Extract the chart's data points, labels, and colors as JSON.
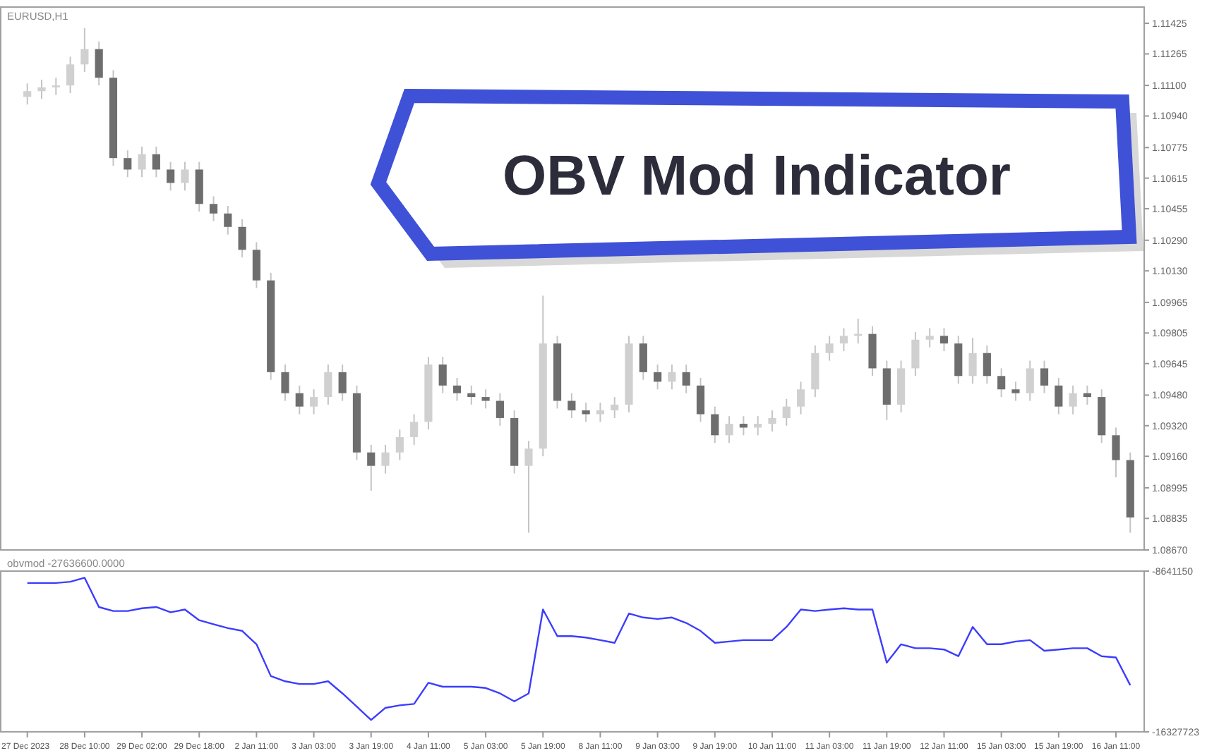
{
  "chart_data": [
    {
      "type": "candlestick",
      "title": "OBV Mod Indicator",
      "annotations": [
        "EURUSD,H1"
      ],
      "tick_labels": "y",
      "grid": false,
      "ylim": [
        1.0867,
        1.1151
      ],
      "yticks": [
        {
          "value": 1.0867,
          "label": "1.08670"
        },
        1.08835,
        1.08995,
        {
          "value": 1.0916,
          "label": "1.09160"
        },
        {
          "value": 1.0932,
          "label": "1.09320"
        },
        {
          "value": 1.0948,
          "label": "1.09480"
        },
        1.09645,
        1.09805,
        1.09965,
        {
          "value": 1.1013,
          "label": "1.10130"
        },
        {
          "value": 1.1029,
          "label": "1.10290"
        },
        1.10455,
        1.10615,
        1.10775,
        {
          "value": 1.1094,
          "label": "1.10940"
        },
        {
          "value": 1.111,
          "label": "1.11100"
        },
        1.11265,
        1.11425
      ],
      "ohlc": [
        [
          1.1104,
          1.1111,
          1.11,
          1.1107
        ],
        [
          1.1107,
          1.1113,
          1.1103,
          1.1109
        ],
        [
          1.1109,
          1.1114,
          1.1105,
          1.111
        ],
        [
          1.111,
          1.1125,
          1.1106,
          1.1121
        ],
        [
          1.1121,
          1.114,
          1.1117,
          1.1129
        ],
        [
          1.1129,
          1.1133,
          1.111,
          1.1114
        ],
        [
          1.1114,
          1.1118,
          1.1068,
          1.1072
        ],
        [
          1.1072,
          1.1076,
          1.1062,
          1.1066
        ],
        [
          1.1066,
          1.1078,
          1.1062,
          1.1074
        ],
        [
          1.1074,
          1.1078,
          1.1062,
          1.1066
        ],
        [
          1.1066,
          1.107,
          1.1055,
          1.1059
        ],
        [
          1.1059,
          1.107,
          1.1055,
          1.1066
        ],
        [
          1.1066,
          1.107,
          1.1044,
          1.1048
        ],
        [
          1.1048,
          1.1052,
          1.1039,
          1.1043
        ],
        [
          1.1043,
          1.1047,
          1.1032,
          1.1036
        ],
        [
          1.1036,
          1.104,
          1.102,
          1.1024
        ],
        [
          1.1024,
          1.1028,
          1.1004,
          1.1008
        ],
        [
          1.1008,
          1.1012,
          1.0956,
          1.096
        ],
        [
          1.096,
          1.0964,
          1.0945,
          1.0949
        ],
        [
          1.0949,
          1.0953,
          1.0938,
          1.0942
        ],
        [
          1.0942,
          1.0951,
          1.0938,
          1.0947
        ],
        [
          1.0947,
          1.0964,
          1.0943,
          1.096
        ],
        [
          1.096,
          1.0964,
          1.0945,
          1.0949
        ],
        [
          1.0949,
          1.0953,
          1.0914,
          1.0918
        ],
        [
          1.0918,
          1.0922,
          1.0898,
          1.0911
        ],
        [
          1.0911,
          1.0922,
          1.0907,
          1.0918
        ],
        [
          1.0918,
          1.093,
          1.0914,
          1.0926
        ],
        [
          1.0926,
          1.0938,
          1.0922,
          1.0934
        ],
        [
          1.0934,
          1.0968,
          1.093,
          1.0964
        ],
        [
          1.0964,
          1.0968,
          1.0949,
          1.0953
        ],
        [
          1.0953,
          1.0957,
          1.0945,
          1.0949
        ],
        [
          1.0949,
          1.0953,
          1.0943,
          1.0947
        ],
        [
          1.0947,
          1.0951,
          1.0941,
          1.0945
        ],
        [
          1.0945,
          1.0949,
          1.0932,
          1.0936
        ],
        [
          1.0936,
          1.094,
          1.0907,
          1.0911
        ],
        [
          1.0911,
          1.0924,
          1.0876,
          1.092
        ],
        [
          1.092,
          1.1,
          1.0916,
          1.0975
        ],
        [
          1.0975,
          1.0979,
          1.0941,
          1.0945
        ],
        [
          1.0945,
          1.0949,
          1.0936,
          1.094
        ],
        [
          1.094,
          1.0944,
          1.0934,
          1.0938
        ],
        [
          1.0938,
          1.0944,
          1.0934,
          1.094
        ],
        [
          1.094,
          1.0947,
          1.0936,
          1.0943
        ],
        [
          1.0943,
          1.0979,
          1.0939,
          1.0975
        ],
        [
          1.0975,
          1.0979,
          1.0956,
          1.096
        ],
        [
          1.096,
          1.0964,
          1.0951,
          1.0955
        ],
        [
          1.0955,
          1.0964,
          1.0951,
          1.096
        ],
        [
          1.096,
          1.0964,
          1.0949,
          1.0953
        ],
        [
          1.0953,
          1.0957,
          1.0934,
          1.0938
        ],
        [
          1.0938,
          1.0942,
          1.0923,
          1.0927
        ],
        [
          1.0927,
          1.0937,
          1.0923,
          1.0933
        ],
        [
          1.0933,
          1.0937,
          1.0927,
          1.0931
        ],
        [
          1.0931,
          1.0937,
          1.0927,
          1.0933
        ],
        [
          1.0933,
          1.094,
          1.0929,
          1.0936
        ],
        [
          1.0936,
          1.0946,
          1.0932,
          1.0942
        ],
        [
          1.0942,
          1.0955,
          1.0938,
          1.0951
        ],
        [
          1.0951,
          1.0974,
          1.0947,
          1.097
        ],
        [
          1.097,
          1.0979,
          1.0966,
          1.0975
        ],
        [
          1.0975,
          1.0983,
          1.0971,
          1.0979
        ],
        [
          1.0979,
          1.0988,
          1.0975,
          1.098
        ],
        [
          1.098,
          1.0984,
          1.0958,
          1.0962
        ],
        [
          1.0962,
          1.0966,
          1.0935,
          1.0943
        ],
        [
          1.0943,
          1.0966,
          1.0939,
          1.0962
        ],
        [
          1.0962,
          1.0981,
          1.0958,
          1.0977
        ],
        [
          1.0977,
          1.0983,
          1.0973,
          1.0979
        ],
        [
          1.0979,
          1.0983,
          1.0971,
          1.0975
        ],
        [
          1.0975,
          1.0979,
          1.0954,
          1.0958
        ],
        [
          1.0958,
          1.0978,
          1.0954,
          1.097
        ],
        [
          1.097,
          1.0974,
          1.0954,
          1.0958
        ],
        [
          1.0958,
          1.0962,
          1.0947,
          1.0951
        ],
        [
          1.0951,
          1.0955,
          1.0945,
          1.0949
        ],
        [
          1.0949,
          1.0966,
          1.0945,
          1.0962
        ],
        [
          1.0962,
          1.0966,
          1.0949,
          1.0953
        ],
        [
          1.0953,
          1.0957,
          1.0938,
          1.0942
        ],
        [
          1.0942,
          1.0953,
          1.0938,
          1.0949
        ],
        [
          1.0949,
          1.0953,
          1.0943,
          1.0947
        ],
        [
          1.0947,
          1.0951,
          1.0923,
          1.0927
        ],
        [
          1.0927,
          1.0931,
          1.0905,
          1.0914
        ],
        [
          1.0914,
          1.0918,
          1.0876,
          1.0884
        ]
      ]
    },
    {
      "type": "line",
      "annotations": [
        "obvmod -27636600.0000"
      ],
      "grid": false,
      "color": "#3c3cff",
      "categories": [
        "27 Dec 2023",
        null,
        null,
        null,
        "28 Dec 10:00",
        null,
        null,
        null,
        "29 Dec 02:00",
        null,
        null,
        null,
        "29 Dec 18:00",
        null,
        null,
        null,
        "2 Jan 11:00",
        null,
        null,
        null,
        "3 Jan 03:00",
        null,
        null,
        null,
        "3 Jan 19:00",
        null,
        null,
        null,
        "4 Jan 11:00",
        null,
        null,
        null,
        "5 Jan 03:00",
        null,
        null,
        null,
        "5 Jan 19:00",
        null,
        null,
        null,
        "8 Jan 11:00",
        null,
        null,
        null,
        "9 Jan 03:00",
        null,
        null,
        null,
        "9 Jan 19:00",
        null,
        null,
        null,
        "10 Jan 11:00",
        null,
        null,
        null,
        "11 Jan 03:00",
        null,
        null,
        null,
        "11 Jan 19:00",
        null,
        null,
        null,
        "12 Jan 11:00",
        null,
        null,
        null,
        "15 Jan 03:00",
        null,
        null,
        null,
        "15 Jan 19:00",
        null,
        null,
        null,
        "16 Jan 11:00",
        null
      ],
      "ylim": [
        -16327723,
        -8641150
      ],
      "yticks": [
        -16327723,
        -8641150
      ],
      "values": [
        -9210000,
        -9210000,
        -9210000,
        -9150000,
        -8960000,
        -10360000,
        -10550000,
        -10550000,
        -10420000,
        -10360000,
        -10610000,
        -10480000,
        -10990000,
        -11180000,
        -11370000,
        -11500000,
        -12140000,
        -13660000,
        -13910000,
        -14040000,
        -14040000,
        -13910000,
        -14490000,
        -15120000,
        -15760000,
        -15180000,
        -15060000,
        -14990000,
        -13980000,
        -14170000,
        -14170000,
        -14170000,
        -14230000,
        -14490000,
        -14870000,
        -14490000,
        -10480000,
        -11750000,
        -11750000,
        -11820000,
        -11940000,
        -12070000,
        -10670000,
        -10860000,
        -10930000,
        -10860000,
        -11120000,
        -11500000,
        -12070000,
        -12010000,
        -11940000,
        -11940000,
        -11940000,
        -11310000,
        -10480000,
        -10550000,
        -10480000,
        -10420000,
        -10480000,
        -10480000,
        -13020000,
        -12140000,
        -12330000,
        -12330000,
        -12390000,
        -12710000,
        -11310000,
        -12140000,
        -12140000,
        -12010000,
        -11940000,
        -12450000,
        -12390000,
        -12330000,
        -12330000,
        -12710000,
        -12770000,
        -14100000
      ]
    }
  ]
}
